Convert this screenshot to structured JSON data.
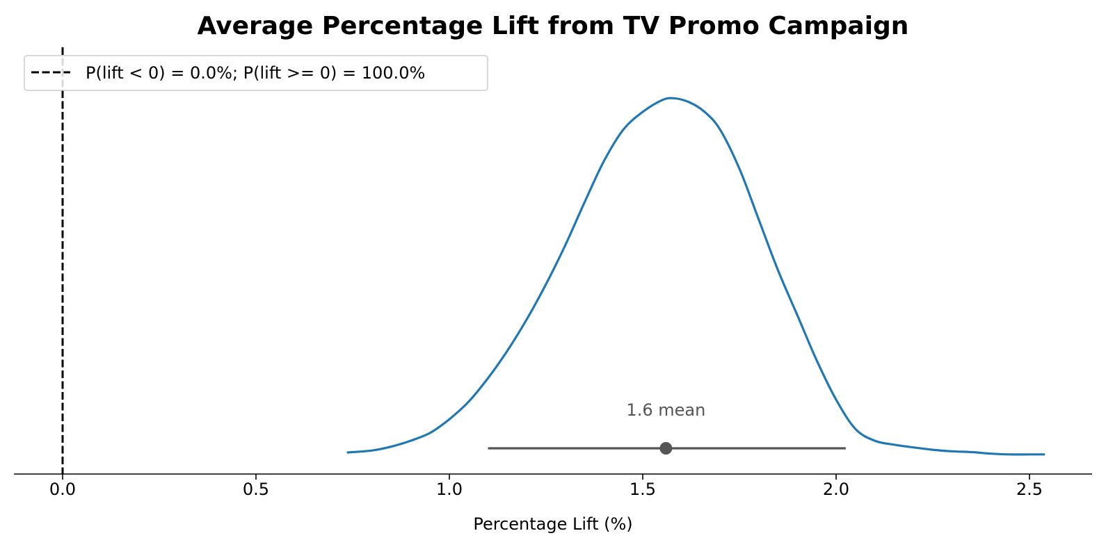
{
  "chart_data": {
    "type": "line",
    "title": "Average Percentage Lift from TV Promo Campaign",
    "xlabel": "Percentage Lift (%)",
    "ylabel": "",
    "xlim": [
      -0.13,
      2.67
    ],
    "ylim": [
      0,
      1.06
    ],
    "x_ticks": [
      0.0,
      0.5,
      1.0,
      1.5,
      2.0,
      2.5
    ],
    "x_tick_labels": [
      "0.0",
      "0.5",
      "1.0",
      "1.5",
      "2.0",
      "2.5"
    ],
    "y_axis_visible": false,
    "grid": false,
    "legend": {
      "placement": "upper-left",
      "entries": [
        {
          "label": "P(lift < 0) = 0.0%; P(lift >= 0) = 100.0%",
          "style": "dashed",
          "color": "#000000"
        }
      ]
    },
    "series": [
      {
        "kind": "density",
        "color": "#1f77b4",
        "x": [
          0.735,
          0.8,
          0.85,
          0.9,
          0.95,
          1.0,
          1.05,
          1.1,
          1.15,
          1.2,
          1.25,
          1.3,
          1.35,
          1.4,
          1.45,
          1.5,
          1.55,
          1.58,
          1.62,
          1.66,
          1.7,
          1.75,
          1.8,
          1.85,
          1.9,
          1.95,
          2.0,
          2.05,
          2.1,
          2.15,
          2.2,
          2.25,
          2.3,
          2.35,
          2.4,
          2.45,
          2.5,
          2.54
        ],
        "y": [
          0.055,
          0.06,
          0.07,
          0.085,
          0.105,
          0.14,
          0.185,
          0.245,
          0.315,
          0.395,
          0.485,
          0.585,
          0.695,
          0.8,
          0.88,
          0.925,
          0.955,
          0.96,
          0.95,
          0.925,
          0.88,
          0.78,
          0.65,
          0.52,
          0.405,
          0.29,
          0.19,
          0.115,
          0.085,
          0.075,
          0.068,
          0.062,
          0.058,
          0.056,
          0.052,
          0.05,
          0.05,
          0.05
        ]
      }
    ],
    "reference_line": {
      "x": 0.0,
      "style": "dashed",
      "color": "#000000"
    },
    "hdi": {
      "low": 1.1,
      "high": 2.025,
      "mean": 1.56,
      "color": "#555555",
      "label": "1.6 mean"
    }
  }
}
